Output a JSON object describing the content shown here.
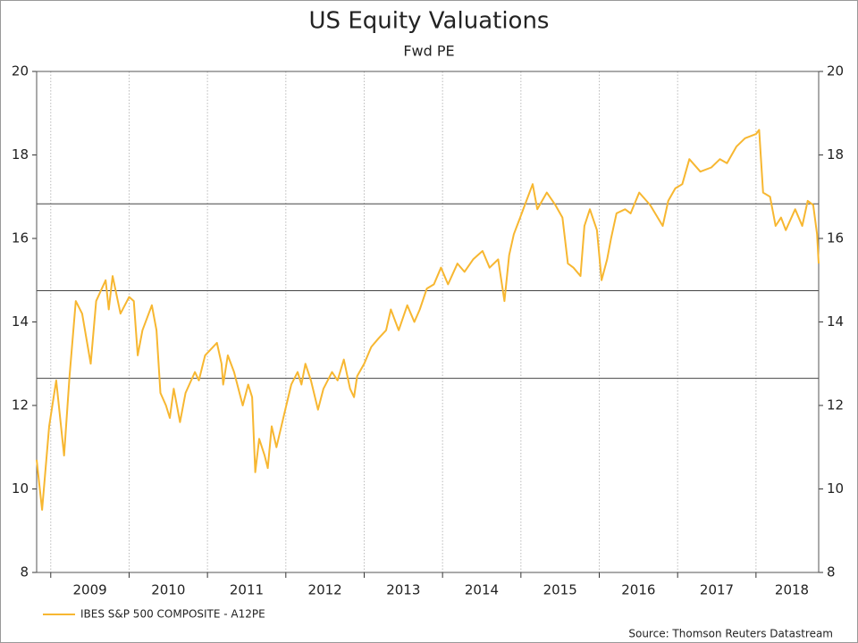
{
  "chart_data": {
    "type": "line",
    "title": "US Equity Valuations",
    "subtitle": "Fwd PE",
    "source": "Source: Thomson Reuters Datastream",
    "x": [
      2008.82,
      2008.89,
      2008.98,
      2009.07,
      2009.17,
      2009.24,
      2009.32,
      2009.4,
      2009.51,
      2009.58,
      2009.7,
      2009.74,
      2009.79,
      2009.89,
      2010.0,
      2010.06,
      2010.11,
      2010.17,
      2010.29,
      2010.35,
      2010.4,
      2010.47,
      2010.52,
      2010.57,
      2010.65,
      2010.72,
      2010.84,
      2010.89,
      2010.97,
      2011.12,
      2011.18,
      2011.2,
      2011.26,
      2011.34,
      2011.45,
      2011.52,
      2011.57,
      2011.61,
      2011.66,
      2011.73,
      2011.77,
      2011.82,
      2011.88,
      2011.98,
      2012.07,
      2012.15,
      2012.2,
      2012.25,
      2012.32,
      2012.41,
      2012.48,
      2012.59,
      2012.66,
      2012.74,
      2012.82,
      2012.87,
      2012.91,
      2013.0,
      2013.09,
      2013.18,
      2013.28,
      2013.34,
      2013.44,
      2013.55,
      2013.64,
      2013.71,
      2013.8,
      2013.89,
      2013.98,
      2014.07,
      2014.19,
      2014.28,
      2014.39,
      2014.51,
      2014.6,
      2014.71,
      2014.79,
      2014.85,
      2014.91,
      2014.99,
      2015.05,
      2015.15,
      2015.21,
      2015.33,
      2015.44,
      2015.53,
      2015.6,
      2015.67,
      2015.76,
      2015.81,
      2015.88,
      2015.97,
      2016.03,
      2016.1,
      2016.15,
      2016.22,
      2016.33,
      2016.4,
      2016.51,
      2016.65,
      2016.81,
      2016.88,
      2016.97,
      2017.06,
      2017.15,
      2017.29,
      2017.43,
      2017.54,
      2017.63,
      2017.75,
      2017.86,
      2018.0,
      2018.04,
      2018.09,
      2018.18,
      2018.25,
      2018.32,
      2018.38,
      2018.5,
      2018.59,
      2018.66,
      2018.73,
      2018.78,
      2018.8
    ],
    "series": [
      {
        "name": "IBES S&P 500 COMPOSITE - A12PE",
        "color": "#f7b731",
        "values": [
          10.7,
          9.5,
          11.5,
          12.6,
          10.8,
          12.7,
          14.5,
          14.2,
          13.0,
          14.5,
          15.0,
          14.3,
          15.1,
          14.2,
          14.6,
          14.5,
          13.2,
          13.8,
          14.4,
          13.8,
          12.3,
          12.0,
          11.7,
          12.4,
          11.6,
          12.3,
          12.8,
          12.6,
          13.2,
          13.5,
          13.0,
          12.5,
          13.2,
          12.8,
          12.0,
          12.5,
          12.2,
          10.4,
          11.2,
          10.8,
          10.5,
          11.5,
          11.0,
          11.8,
          12.5,
          12.8,
          12.5,
          13.0,
          12.6,
          11.9,
          12.4,
          12.8,
          12.6,
          13.1,
          12.4,
          12.2,
          12.7,
          13.0,
          13.4,
          13.6,
          13.8,
          14.3,
          13.8,
          14.4,
          14.0,
          14.3,
          14.8,
          14.9,
          15.3,
          14.9,
          15.4,
          15.2,
          15.5,
          15.7,
          15.3,
          15.5,
          14.5,
          15.6,
          16.1,
          16.5,
          16.8,
          17.3,
          16.7,
          17.1,
          16.8,
          16.5,
          15.4,
          15.3,
          15.1,
          16.3,
          16.7,
          16.2,
          15.0,
          15.5,
          16.0,
          16.6,
          16.7,
          16.6,
          17.1,
          16.8,
          16.3,
          16.9,
          17.2,
          17.3,
          17.9,
          17.6,
          17.7,
          17.9,
          17.8,
          18.2,
          18.4,
          18.5,
          18.6,
          17.1,
          17.0,
          16.3,
          16.5,
          16.2,
          16.7,
          16.3,
          16.9,
          16.8,
          16.1,
          15.4
        ]
      }
    ],
    "hlines": [
      16.83,
      14.75,
      12.65
    ],
    "xlim": [
      2008.82,
      2018.8
    ],
    "xticks": [
      2009,
      2010,
      2011,
      2012,
      2013,
      2014,
      2015,
      2016,
      2017,
      2018
    ],
    "ylim": [
      8,
      20
    ],
    "yticks": [
      8,
      10,
      12,
      14,
      16,
      18,
      20
    ],
    "grid": true,
    "legend": "bottom-left"
  }
}
